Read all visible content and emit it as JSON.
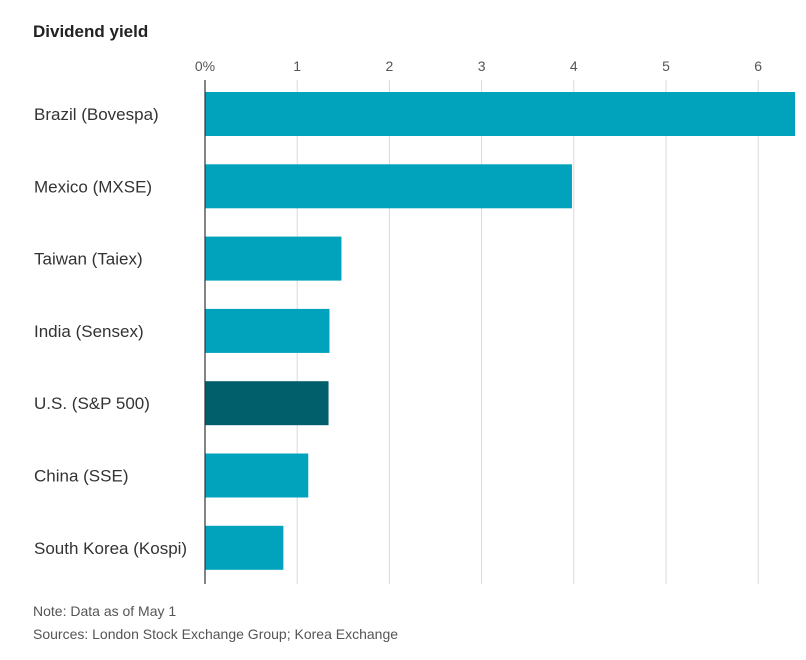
{
  "chart_data": {
    "type": "bar",
    "orientation": "horizontal",
    "title": "Dividend yield",
    "categories": [
      "Brazil (Bovespa)",
      "Mexico (MXSE)",
      "Taiwan (Taiex)",
      "India (Sensex)",
      "U.S. (S&P 500)",
      "China (SSE)",
      "South Korea (Kospi)"
    ],
    "values": [
      6.4,
      3.98,
      1.48,
      1.35,
      1.34,
      1.12,
      0.85
    ],
    "highlight_category": "U.S. (S&P 500)",
    "xlim": [
      0,
      6.4
    ],
    "xticks": [
      "0%",
      "1",
      "2",
      "3",
      "4",
      "5",
      "6"
    ],
    "grid": true,
    "axis_position": "top",
    "colors": {
      "bar": "#00a2bc",
      "highlight": "#005f6b",
      "grid": "#d9d9d9",
      "axis": "#333333"
    }
  },
  "notes": {
    "note": "Note: Data as of May 1",
    "sources": "Sources: London Stock Exchange Group; Korea Exchange"
  }
}
